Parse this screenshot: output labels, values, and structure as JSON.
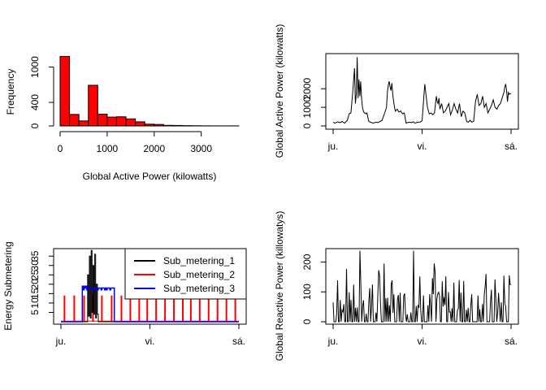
{
  "chart_data": [
    {
      "id": "hist",
      "type": "bar",
      "title": "",
      "xlabel": "Global Active Power (kilowatts)",
      "ylabel": "Frequency",
      "bar_color": "#ff0000",
      "xlim": [
        0,
        3800
      ],
      "ylim": [
        0,
        1200
      ],
      "x_ticks": [
        0,
        1000,
        2000,
        3000
      ],
      "y_ticks": [
        0,
        400,
        1000
      ],
      "bins": [
        {
          "x0": 0,
          "x1": 200,
          "count": 1180
        },
        {
          "x0": 200,
          "x1": 400,
          "count": 195
        },
        {
          "x0": 400,
          "x1": 600,
          "count": 85
        },
        {
          "x0": 600,
          "x1": 800,
          "count": 690
        },
        {
          "x0": 800,
          "x1": 1000,
          "count": 200
        },
        {
          "x0": 1000,
          "x1": 1200,
          "count": 150
        },
        {
          "x0": 1200,
          "x1": 1400,
          "count": 155
        },
        {
          "x0": 1400,
          "x1": 1600,
          "count": 120
        },
        {
          "x0": 1600,
          "x1": 1800,
          "count": 70
        },
        {
          "x0": 1800,
          "x1": 2000,
          "count": 30
        },
        {
          "x0": 2000,
          "x1": 2200,
          "count": 25
        },
        {
          "x0": 2200,
          "x1": 2400,
          "count": 10
        },
        {
          "x0": 2400,
          "x1": 2600,
          "count": 8
        },
        {
          "x0": 2600,
          "x1": 2800,
          "count": 5
        },
        {
          "x0": 2800,
          "x1": 3000,
          "count": 3
        },
        {
          "x0": 3000,
          "x1": 3200,
          "count": 2
        },
        {
          "x0": 3200,
          "x1": 3400,
          "count": 1
        },
        {
          "x0": 3400,
          "x1": 3600,
          "count": 1
        },
        {
          "x0": 3600,
          "x1": 3800,
          "count": 1
        }
      ]
    },
    {
      "id": "gap",
      "type": "line",
      "title": "",
      "xlabel": "",
      "ylabel": "Global Active Power (kilowatts)",
      "xlim": [
        0,
        2
      ],
      "ylim": [
        0,
        3800
      ],
      "x_ticks": [
        {
          "value": 0,
          "label": "ju."
        },
        {
          "value": 1,
          "label": "vi."
        },
        {
          "value": 2,
          "label": "sá."
        }
      ],
      "y_ticks": [
        0,
        1000,
        2000
      ],
      "series": [
        {
          "color": "#000000",
          "x": [
            0.0,
            0.02,
            0.05,
            0.08,
            0.1,
            0.13,
            0.16,
            0.18,
            0.2,
            0.22,
            0.24,
            0.25,
            0.26,
            0.27,
            0.28,
            0.29,
            0.3,
            0.31,
            0.32,
            0.33,
            0.34,
            0.35,
            0.36,
            0.37,
            0.38,
            0.4,
            0.42,
            0.45,
            0.48,
            0.5,
            0.52,
            0.55,
            0.58,
            0.6,
            0.61,
            0.62,
            0.63,
            0.64,
            0.65,
            0.66,
            0.67,
            0.68,
            0.69,
            0.7,
            0.72,
            0.74,
            0.76,
            0.78,
            0.8,
            0.82,
            0.85,
            0.88,
            0.9,
            0.92,
            0.95,
            0.98,
            1.0,
            1.03,
            1.06,
            1.08,
            1.1,
            1.12,
            1.14,
            1.16,
            1.17,
            1.18,
            1.19,
            1.2,
            1.22,
            1.24,
            1.26,
            1.28,
            1.3,
            1.32,
            1.34,
            1.36,
            1.38,
            1.4,
            1.42,
            1.44,
            1.46,
            1.48,
            1.5,
            1.52,
            1.54,
            1.56,
            1.58,
            1.6,
            1.62,
            1.64,
            1.66,
            1.68,
            1.7,
            1.72,
            1.74,
            1.76,
            1.78,
            1.8,
            1.82,
            1.84,
            1.86,
            1.88,
            1.9,
            1.92,
            1.93,
            1.94,
            1.95,
            1.96,
            1.97,
            1.98,
            2.0
          ],
          "y": [
            200,
            150,
            220,
            180,
            240,
            150,
            300,
            650,
            700,
            1800,
            3100,
            1200,
            1700,
            3700,
            1500,
            2500,
            1600,
            2400,
            1500,
            1000,
            800,
            700,
            700,
            650,
            700,
            250,
            200,
            150,
            200,
            180,
            220,
            300,
            700,
            1000,
            1800,
            2200,
            2400,
            2100,
            1900,
            2300,
            1700,
            1300,
            1000,
            800,
            900,
            750,
            800,
            650,
            700,
            150,
            200,
            180,
            220,
            150,
            200,
            210,
            280,
            2250,
            1000,
            650,
            700,
            600,
            700,
            1600,
            1300,
            1200,
            1500,
            900,
            1200,
            700,
            800,
            1000,
            1200,
            600,
            850,
            1200,
            900,
            700,
            1200,
            500,
            800,
            700,
            250,
            200,
            300,
            200,
            250,
            1300,
            1700,
            1100,
            1200,
            1600,
            1000,
            1200,
            700,
            900,
            1100,
            1400,
            1000,
            900,
            1100,
            1200,
            1500,
            1800,
            2100,
            2250,
            1900,
            1300,
            1800,
            1700,
            1750
          ]
        }
      ]
    },
    {
      "id": "sub",
      "type": "line",
      "title": "",
      "xlabel": "",
      "ylabel": "Energy Submetering",
      "xlim": [
        0,
        2
      ],
      "ylim": [
        0,
        39
      ],
      "x_ticks": [
        {
          "value": 0,
          "label": "ju."
        },
        {
          "value": 1,
          "label": "vi."
        },
        {
          "value": 2,
          "label": "sá."
        }
      ],
      "y_ticks": [
        5,
        10,
        15,
        20,
        25,
        30,
        35
      ],
      "legend": {
        "placement": "top-right",
        "entries": [
          "Sub_metering_1",
          "Sub_metering_2",
          "Sub_metering_3"
        ]
      },
      "series": [
        {
          "name": "Sub_metering_1",
          "color": "#000000",
          "x": [
            0.0,
            0.3,
            0.3,
            0.31,
            0.31,
            0.32,
            0.32,
            0.33,
            0.33,
            0.34,
            0.34,
            0.35,
            0.35,
            0.36,
            0.36,
            0.37,
            0.37,
            0.38,
            0.38,
            0.39,
            0.39,
            0.4,
            0.4,
            0.41,
            0.41,
            0.42,
            0.42,
            2.0
          ],
          "y": [
            0,
            0,
            25,
            25,
            3,
            3,
            35,
            35,
            2,
            2,
            38,
            38,
            5,
            5,
            30,
            30,
            4,
            4,
            36,
            36,
            2,
            2,
            20,
            20,
            4,
            4,
            0,
            0
          ]
        },
        {
          "name": "Sub_metering_2",
          "color": "#ff0000",
          "spike_x": [
            0.04,
            0.15,
            0.26,
            0.36,
            0.46,
            0.57,
            0.68,
            0.78,
            0.88,
            0.97,
            1.07,
            1.17,
            1.27,
            1.37,
            1.46,
            1.56,
            1.66,
            1.76,
            1.86,
            1.96
          ],
          "spike_y": [
            14,
            14,
            14,
            14,
            14,
            14,
            14,
            14,
            14,
            14,
            14,
            14,
            14,
            14,
            14,
            14,
            14,
            14,
            14,
            14
          ]
        },
        {
          "name": "Sub_metering_3",
          "color": "#0000ff",
          "x": [
            0.0,
            0.24,
            0.24,
            0.25,
            0.25,
            0.26,
            0.26,
            0.27,
            0.27,
            0.28,
            0.28,
            0.29,
            0.29,
            0.3,
            0.3,
            0.34,
            0.34,
            0.36,
            0.36,
            0.4,
            0.4,
            0.42,
            0.42,
            0.45,
            0.45,
            0.46,
            0.46,
            0.49,
            0.49,
            0.5,
            0.5,
            0.51,
            0.51,
            0.52,
            0.52,
            0.55,
            0.55,
            0.56,
            0.56,
            0.6,
            0.6,
            0.64,
            0.64,
            0.66,
            0.66,
            0.7,
            0.7,
            0.73,
            0.73,
            0.8,
            0.8,
            0.85,
            0.85,
            0.9,
            0.9,
            0.95,
            0.95,
            1.0,
            1.0,
            1.05,
            1.05,
            1.1,
            1.1,
            1.15,
            1.15,
            1.2,
            1.2,
            1.25,
            1.25,
            1.32,
            1.32,
            1.4,
            1.4,
            1.45,
            1.45,
            1.52,
            1.52,
            1.6,
            1.6,
            1.66,
            1.66,
            1.75,
            1.75,
            1.8,
            1.8,
            1.87,
            1.87,
            1.95,
            1.95,
            2.0
          ],
          "y": [
            0,
            0,
            19,
            19,
            17,
            17,
            19,
            19,
            18,
            18,
            19,
            19,
            17,
            17,
            18,
            18,
            17,
            17,
            18,
            18,
            17,
            17,
            18,
            18,
            17,
            17,
            18,
            18,
            17,
            17,
            18,
            18,
            17,
            17,
            18,
            18,
            17,
            17,
            18,
            18,
            0,
            0,
            0,
            0,
            0,
            0,
            0,
            0,
            0,
            0,
            0,
            0,
            0,
            0,
            0,
            0,
            0,
            0,
            0,
            0,
            0,
            0,
            0,
            0,
            0,
            0,
            0,
            0,
            0,
            0,
            0,
            0,
            0,
            0,
            0,
            0,
            0,
            0,
            0,
            0,
            0,
            0,
            0,
            0,
            0,
            0,
            0,
            0,
            0,
            0
          ]
        }
      ]
    },
    {
      "id": "grp",
      "type": "line",
      "title": "",
      "xlabel": "",
      "ylabel": "Global Reactive Power (killowatys)",
      "xlim": [
        0,
        2
      ],
      "ylim": [
        0,
        245
      ],
      "x_ticks": [
        {
          "value": 0,
          "label": "ju."
        },
        {
          "value": 1,
          "label": "vi."
        },
        {
          "value": 2,
          "label": "sá."
        }
      ],
      "y_ticks": [
        0,
        100,
        200
      ],
      "series": [
        {
          "color": "#000000",
          "generated": "deterministic-noise",
          "points": 200
        }
      ]
    }
  ]
}
